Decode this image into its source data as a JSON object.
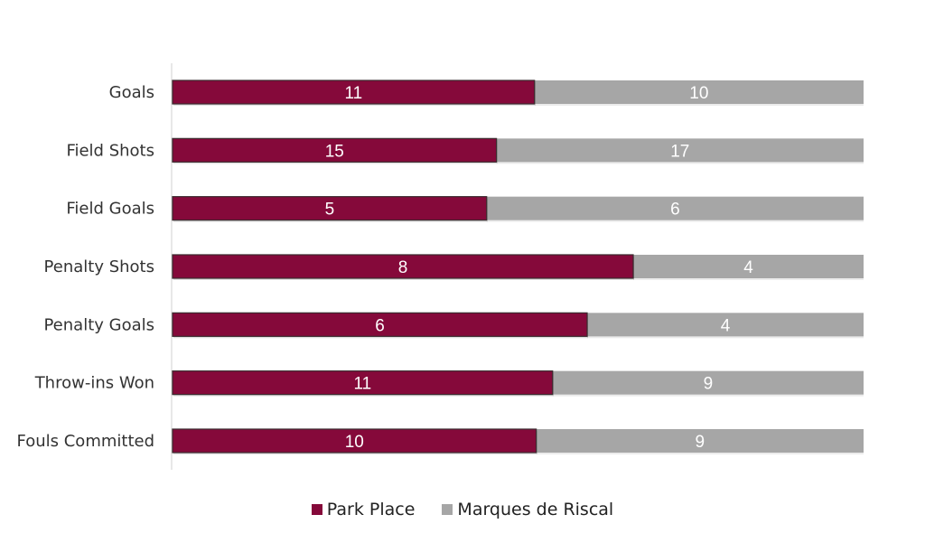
{
  "chart_data": {
    "type": "bar",
    "orientation": "horizontal",
    "stacking": "percent",
    "categories": [
      "Goals",
      "Field Shots",
      "Field Goals",
      "Penalty Shots",
      "Penalty Goals",
      "Throw-ins Won",
      "Fouls Committed"
    ],
    "series": [
      {
        "name": "Park Place",
        "color": "#85093a",
        "values": [
          11,
          15,
          5,
          8,
          6,
          11,
          10
        ]
      },
      {
        "name": "Marques de Riscal",
        "color": "#a6a6a6",
        "values": [
          10,
          17,
          6,
          4,
          4,
          9,
          9
        ]
      }
    ],
    "data_labels": true,
    "grid": false,
    "legend_position": "bottom"
  }
}
